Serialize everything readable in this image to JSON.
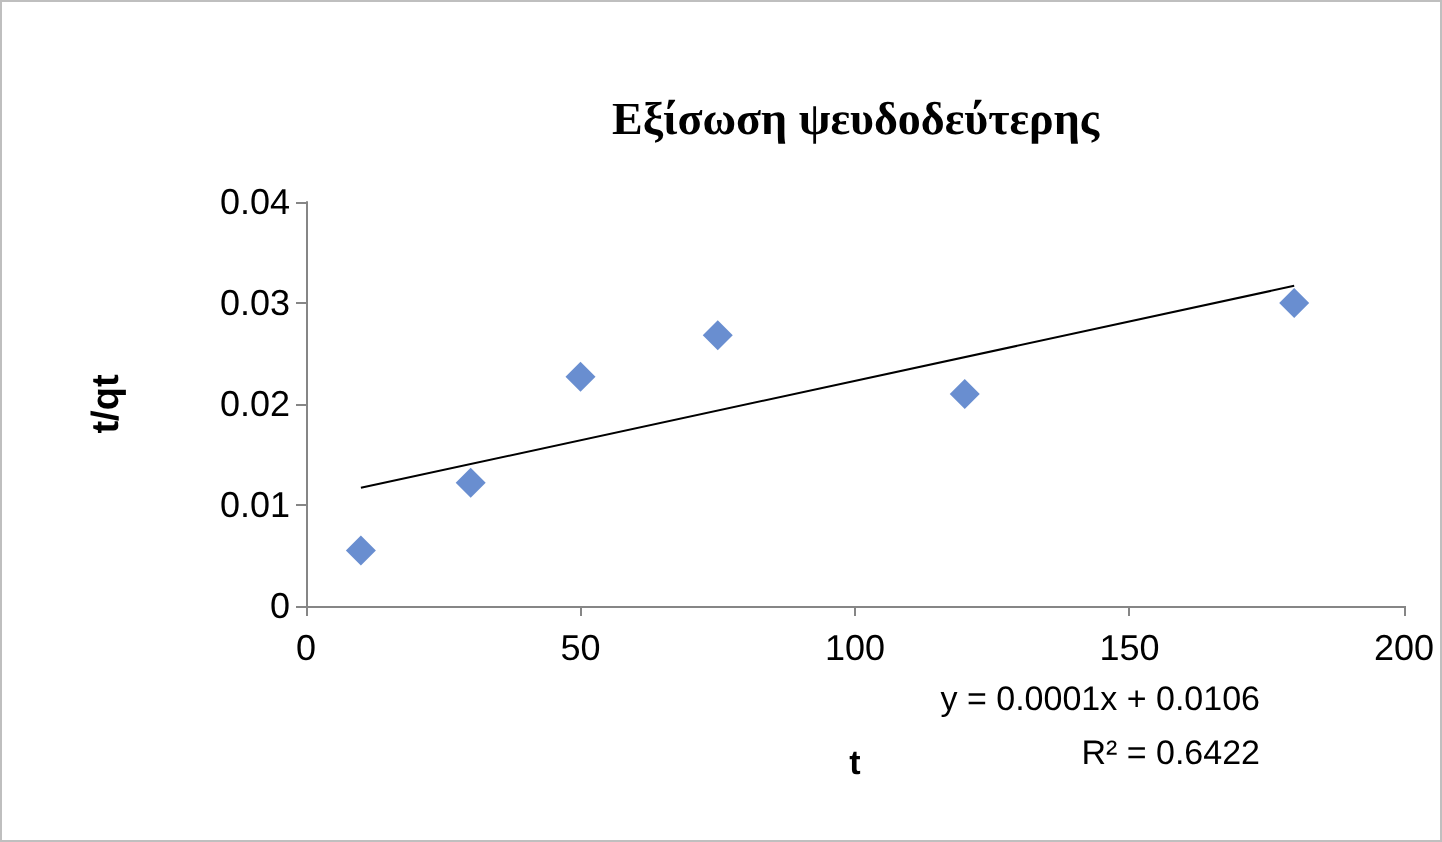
{
  "chart_data": {
    "type": "scatter",
    "title": "Εξίσωση ψευδοδεύτερης",
    "xlabel": "t",
    "ylabel": "t/qt",
    "series": [
      {
        "color": "#4472c4",
        "x": [
          10,
          30,
          50,
          75,
          120,
          180
        ],
        "values": [
          0.0055,
          0.0122,
          0.0227,
          0.0268,
          0.021,
          0.03
        ],
        "marker": "diamond"
      },
      {
        "type": "line",
        "color": "#000000",
        "x": [
          10,
          180
        ],
        "values": [
          0.0117,
          0.0317
        ],
        "marker": "none",
        "line_style": "solid"
      }
    ],
    "xlim": [
      0,
      200
    ],
    "xticks": [
      0,
      50,
      100,
      150,
      200
    ],
    "ylim": [
      0,
      0.04
    ],
    "yticks": [
      0,
      0.01,
      0.02,
      0.03,
      0.04
    ],
    "grid": false,
    "annotations": [
      "y = 0.0001x + 0.0106",
      "R² = 0.6422"
    ]
  }
}
